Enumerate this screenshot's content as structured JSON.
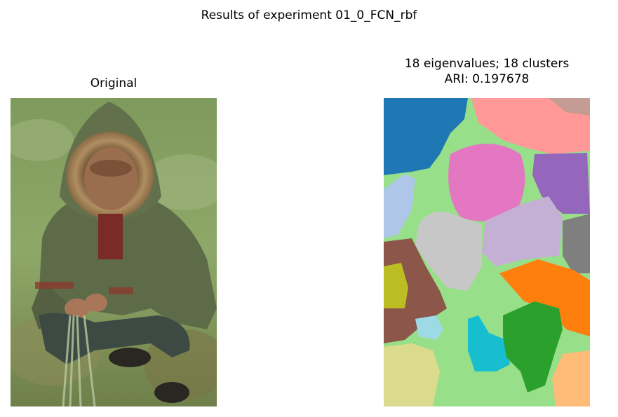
{
  "figure": {
    "suptitle": "Results of experiment 01_0_FCN_rbf"
  },
  "left_panel": {
    "title": "Original"
  },
  "right_panel": {
    "title_line1": "18 eigenvalues; 18 clusters",
    "title_line2": "ARI: 0.197678"
  },
  "colors": {
    "background_green": "#98df8a",
    "blue": "#1f77b4",
    "pink_light": "#ff9896",
    "brown_light": "#c49c94",
    "pink": "#e377c2",
    "purple": "#9467bd",
    "steel_light": "#aec7e8",
    "grey_light": "#c7c7c7",
    "lavender": "#c5b0d5",
    "grey": "#7f7f7f",
    "brown": "#8c564b",
    "olive": "#bcbd22",
    "orange": "#ff7f0e",
    "cyan_light": "#9edae5",
    "cyan": "#17becf",
    "green": "#2ca02c",
    "olive_light": "#dbdb8d",
    "orange_light": "#ffbb78"
  }
}
